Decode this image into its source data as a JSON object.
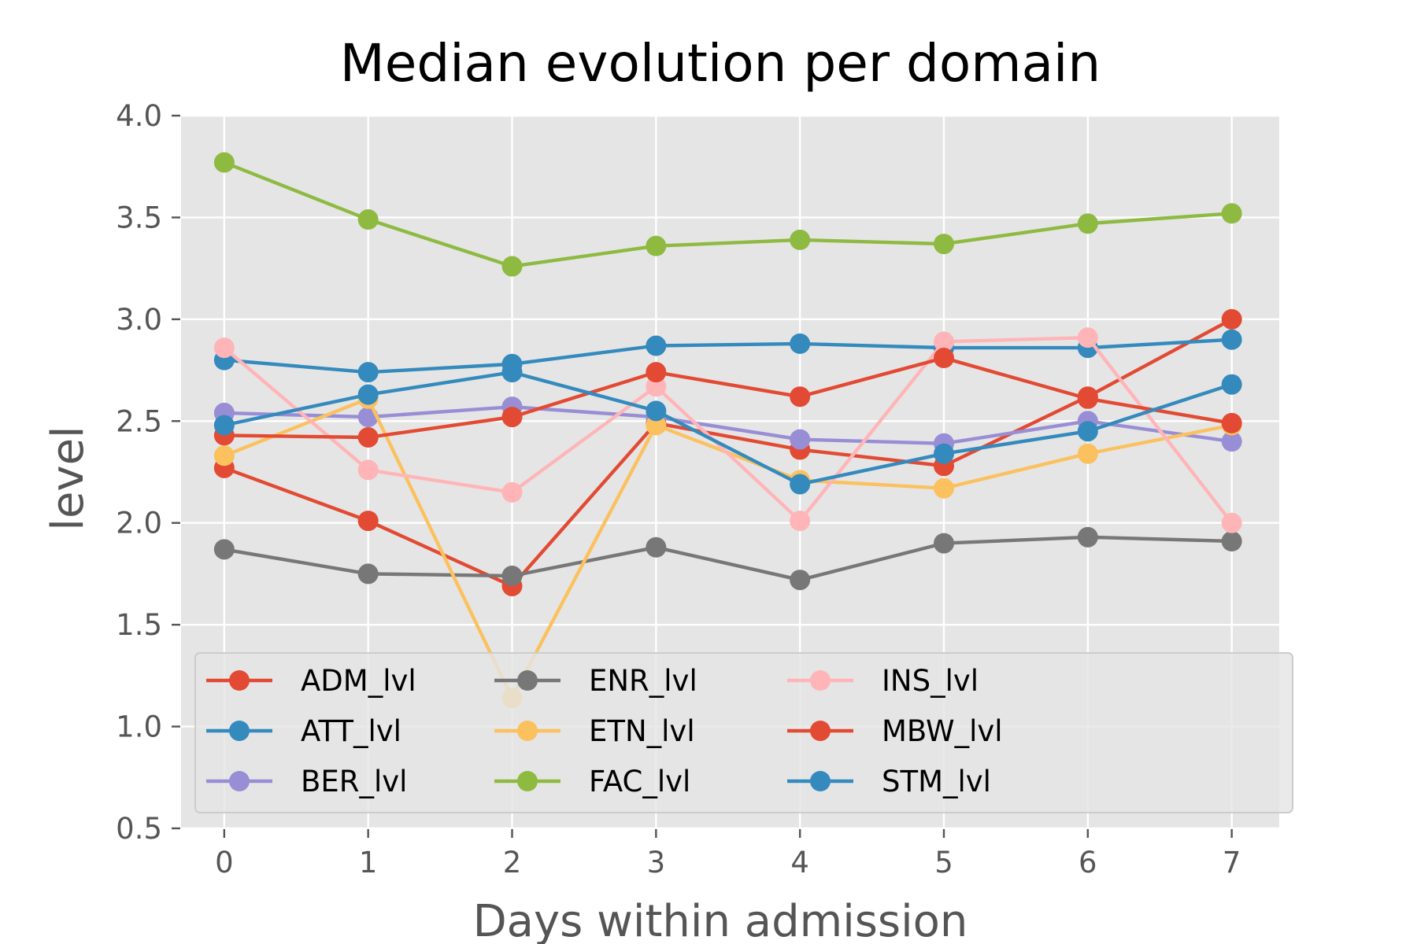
{
  "chart_data": {
    "type": "line",
    "title": "Median evolution per domain",
    "xlabel": "Days within admission",
    "ylabel": "level",
    "x": [
      0,
      1,
      2,
      3,
      4,
      5,
      6,
      7
    ],
    "xticks": [
      "0",
      "1",
      "2",
      "3",
      "4",
      "5",
      "6",
      "7"
    ],
    "xlim": [
      -0.3,
      7.33
    ],
    "ylim": [
      0.5,
      4.0
    ],
    "yticks": [
      "0.5",
      "1.0",
      "1.5",
      "2.0",
      "2.5",
      "3.0",
      "3.5",
      "4.0"
    ],
    "grid": true,
    "legend_placement": "lower-center",
    "legend_columns": 4,
    "style": "ggplot",
    "series": [
      {
        "name": "ADM_lvl",
        "color": "#E24A33",
        "values": [
          2.27,
          2.01,
          1.69,
          2.49,
          2.36,
          2.28,
          2.62,
          3.0
        ]
      },
      {
        "name": "ATT_lvl",
        "color": "#348ABD",
        "values": [
          2.8,
          2.74,
          2.78,
          2.87,
          2.88,
          2.86,
          2.86,
          2.9
        ]
      },
      {
        "name": "BER_lvl",
        "color": "#988ED5",
        "values": [
          2.54,
          2.52,
          2.57,
          2.52,
          2.41,
          2.39,
          2.5,
          2.4
        ]
      },
      {
        "name": "ENR_lvl",
        "color": "#777777",
        "values": [
          1.87,
          1.75,
          1.74,
          1.88,
          1.72,
          1.9,
          1.93,
          1.91
        ]
      },
      {
        "name": "ETN_lvl",
        "color": "#FBC15E",
        "values": [
          2.33,
          2.61,
          1.14,
          2.48,
          2.21,
          2.17,
          2.34,
          2.48
        ]
      },
      {
        "name": "FAC_lvl",
        "color": "#8EBA42",
        "values": [
          3.77,
          3.49,
          3.26,
          3.36,
          3.39,
          3.37,
          3.47,
          3.52
        ]
      },
      {
        "name": "INS_lvl",
        "color": "#FFB5B8",
        "values": [
          2.86,
          2.26,
          2.15,
          2.67,
          2.01,
          2.89,
          2.91,
          2.0
        ]
      },
      {
        "name": "MBW_lvl",
        "color": "#E24A33",
        "values": [
          2.43,
          2.42,
          2.52,
          2.74,
          2.62,
          2.81,
          2.61,
          2.49
        ]
      },
      {
        "name": "STM_lvl",
        "color": "#348ABD",
        "values": [
          2.48,
          2.63,
          2.74,
          2.55,
          2.19,
          2.34,
          2.45,
          2.68
        ]
      }
    ],
    "colors": {
      "plot_background": "#E5E5E5",
      "grid": "#FFFFFF",
      "legend_background": "#E5E5E5",
      "legend_border": "#CCCCCC",
      "tick_color": "#555555"
    }
  }
}
